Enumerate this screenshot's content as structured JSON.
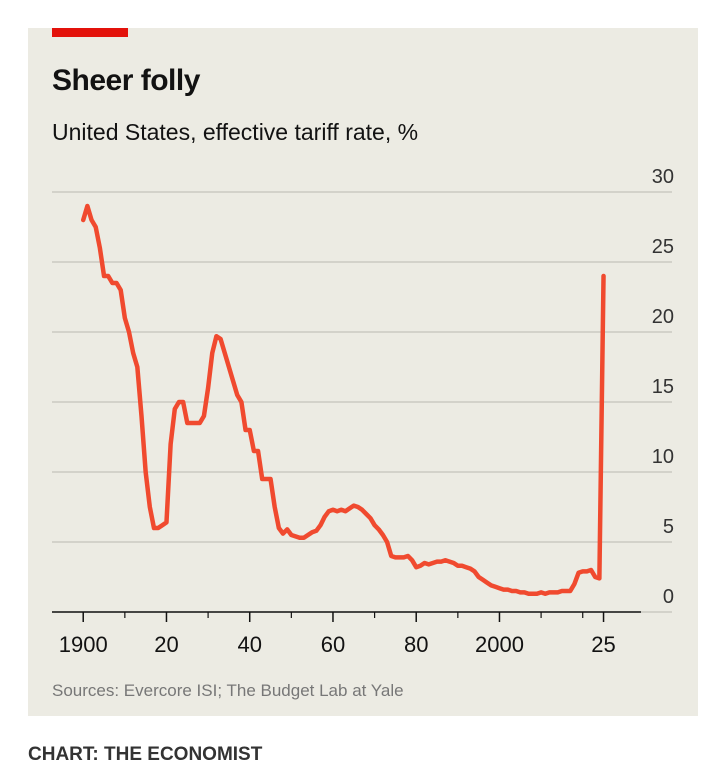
{
  "chart_data": {
    "type": "line",
    "title": "Sheer folly",
    "subtitle": "United States, effective tariff rate, %",
    "source": "Sources: Evercore ISI; The Budget Lab at Yale",
    "credit": "CHART: THE ECONOMIST",
    "x": [
      1900,
      1901,
      1902,
      1903,
      1904,
      1905,
      1906,
      1907,
      1908,
      1909,
      1910,
      1911,
      1912,
      1913,
      1914,
      1915,
      1916,
      1917,
      1918,
      1919,
      1920,
      1921,
      1922,
      1923,
      1924,
      1925,
      1926,
      1927,
      1928,
      1929,
      1930,
      1931,
      1932,
      1933,
      1934,
      1935,
      1936,
      1937,
      1938,
      1939,
      1940,
      1941,
      1942,
      1943,
      1944,
      1945,
      1946,
      1947,
      1948,
      1949,
      1950,
      1951,
      1952,
      1953,
      1954,
      1955,
      1956,
      1957,
      1958,
      1959,
      1960,
      1961,
      1962,
      1963,
      1964,
      1965,
      1966,
      1967,
      1968,
      1969,
      1970,
      1971,
      1972,
      1973,
      1974,
      1975,
      1976,
      1977,
      1978,
      1979,
      1980,
      1981,
      1982,
      1983,
      1984,
      1985,
      1986,
      1987,
      1988,
      1989,
      1990,
      1991,
      1992,
      1993,
      1994,
      1995,
      1996,
      1997,
      1998,
      1999,
      2000,
      2001,
      2002,
      2003,
      2004,
      2005,
      2006,
      2007,
      2008,
      2009,
      2010,
      2011,
      2012,
      2013,
      2014,
      2015,
      2016,
      2017,
      2018,
      2019,
      2020,
      2021,
      2022,
      2023,
      2024,
      2025
    ],
    "series": [
      {
        "name": "Effective tariff rate",
        "color": "#f04a2f",
        "values": [
          28,
          29,
          28,
          27.5,
          26,
          24,
          24,
          23.5,
          23.5,
          23,
          21,
          20,
          18.5,
          17.5,
          14,
          10,
          7.5,
          6,
          6,
          6.2,
          6.4,
          12,
          14.5,
          15,
          15,
          13.5,
          13.5,
          13.5,
          13.5,
          14,
          16,
          18.5,
          19.7,
          19.5,
          18.5,
          17.5,
          16.5,
          15.5,
          15,
          13,
          13,
          11.5,
          11.5,
          9.5,
          9.5,
          9.5,
          7.5,
          6,
          5.6,
          5.9,
          5.5,
          5.4,
          5.3,
          5.3,
          5.5,
          5.7,
          5.8,
          6.2,
          6.8,
          7.2,
          7.3,
          7.2,
          7.3,
          7.2,
          7.4,
          7.6,
          7.5,
          7.3,
          7,
          6.7,
          6.2,
          5.9,
          5.5,
          5,
          4,
          3.9,
          3.9,
          3.9,
          4,
          3.7,
          3.2,
          3.3,
          3.5,
          3.4,
          3.5,
          3.6,
          3.6,
          3.7,
          3.6,
          3.5,
          3.3,
          3.3,
          3.2,
          3.1,
          2.9,
          2.5,
          2.3,
          2.1,
          1.9,
          1.8,
          1.7,
          1.6,
          1.6,
          1.5,
          1.5,
          1.4,
          1.4,
          1.3,
          1.3,
          1.3,
          1.4,
          1.3,
          1.4,
          1.4,
          1.4,
          1.5,
          1.5,
          1.5,
          2,
          2.8,
          2.9,
          2.9,
          3,
          2.5,
          2.4,
          24
        ]
      }
    ],
    "xlim": [
      1892.5,
      2034
    ],
    "xticks": [
      {
        "value": 1900,
        "label": "1900"
      },
      {
        "value": 1920,
        "label": "20"
      },
      {
        "value": 1940,
        "label": "40"
      },
      {
        "value": 1960,
        "label": "60"
      },
      {
        "value": 1980,
        "label": "80"
      },
      {
        "value": 2000,
        "label": "2000"
      },
      {
        "value": 2025,
        "label": "25"
      }
    ],
    "xminorticks": [
      1910,
      1930,
      1950,
      1970,
      1990,
      2010,
      2020
    ],
    "ylim": [
      0,
      30
    ],
    "yticks": [
      0,
      5,
      10,
      15,
      20,
      25,
      30
    ],
    "grid": true
  }
}
